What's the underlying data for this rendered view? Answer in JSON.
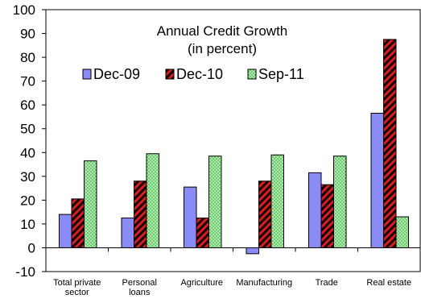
{
  "chart_data": {
    "type": "bar",
    "title": "Annual Credit Growth",
    "subtitle": "(in percent)",
    "categories": [
      [
        "Total private",
        "sector"
      ],
      [
        "Personal",
        "loans"
      ],
      [
        "Agriculture"
      ],
      [
        "Manufacturing"
      ],
      [
        "Trade"
      ],
      [
        "Real estate"
      ]
    ],
    "series": [
      {
        "name": "Dec-09",
        "values": [
          14,
          12.5,
          25.5,
          -2.5,
          31.5,
          56.5
        ],
        "color": "#8b8bf5",
        "pattern": "solid"
      },
      {
        "name": "Dec-10",
        "values": [
          20.5,
          28,
          12.5,
          28,
          26.5,
          87.5
        ],
        "color": "#cc1f1f",
        "pattern": "diagonal-hatch"
      },
      {
        "name": "Sep-11",
        "values": [
          36.5,
          39.5,
          38.5,
          39,
          38.5,
          13
        ],
        "color": "#9ee89e",
        "pattern": "dotted"
      }
    ],
    "ylim": [
      -10,
      100
    ],
    "yticks": [
      -10,
      0,
      10,
      20,
      30,
      40,
      50,
      60,
      70,
      80,
      90,
      100
    ],
    "xlabel": "",
    "ylabel": "",
    "grid": false,
    "legend_position": "top-center"
  }
}
